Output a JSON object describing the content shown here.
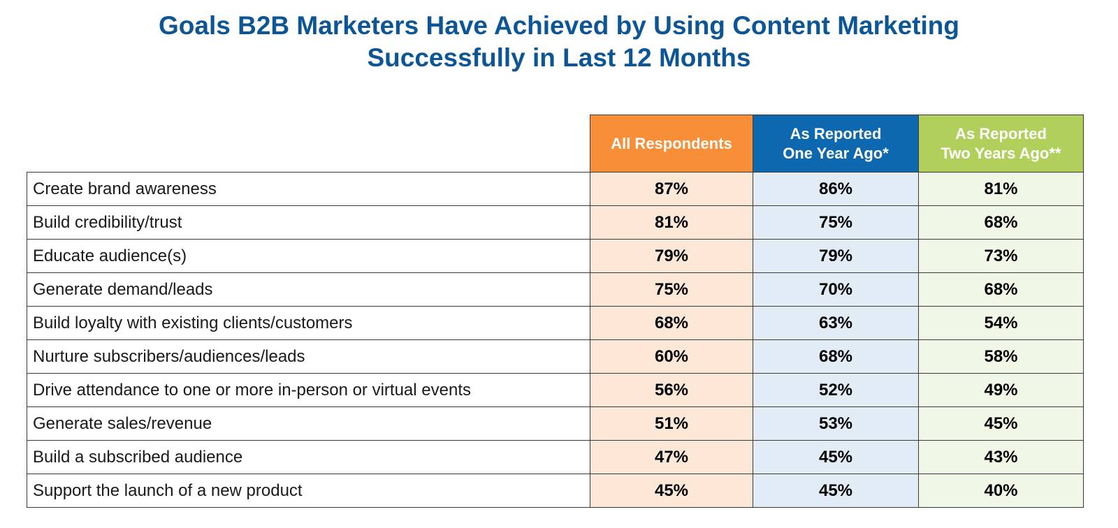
{
  "chart_data": {
    "type": "table",
    "title_lines": [
      "Goals B2B Marketers Have Achieved by Using Content Marketing",
      "Successfully in Last 12 Months"
    ],
    "columns": [
      {
        "label_lines": [
          "All Respondents"
        ],
        "color": "#f88f38",
        "cell_color": "#fde7d6"
      },
      {
        "label_lines": [
          "As Reported",
          "One Year Ago*"
        ],
        "color": "#0e68b0",
        "cell_color": "#e2ecf6"
      },
      {
        "label_lines": [
          "As Reported",
          "Two Years Ago**"
        ],
        "color": "#b1d05b",
        "cell_color": "#f1f7e6"
      }
    ],
    "rows": [
      {
        "label": "Create brand awareness",
        "values": [
          "87%",
          "86%",
          "81%"
        ]
      },
      {
        "label": "Build credibility/trust",
        "values": [
          "81%",
          "75%",
          "68%"
        ]
      },
      {
        "label": "Educate audience(s)",
        "values": [
          "79%",
          "79%",
          "73%"
        ]
      },
      {
        "label": "Generate demand/leads",
        "values": [
          "75%",
          "70%",
          "68%"
        ]
      },
      {
        "label": "Build loyalty with existing clients/customers",
        "values": [
          "68%",
          "63%",
          "54%"
        ]
      },
      {
        "label": "Nurture subscribers/audiences/leads",
        "values": [
          "60%",
          "68%",
          "58%"
        ]
      },
      {
        "label": "Drive attendance to one or more in-person or virtual events",
        "values": [
          "56%",
          "52%",
          "49%"
        ]
      },
      {
        "label": "Generate sales/revenue",
        "values": [
          "51%",
          "53%",
          "45%"
        ]
      },
      {
        "label": "Build a subscribed audience",
        "values": [
          "47%",
          "45%",
          "43%"
        ]
      },
      {
        "label": "Support the launch of a new product",
        "values": [
          "45%",
          "45%",
          "40%"
        ]
      }
    ]
  },
  "colors": {
    "title": "#0c5596",
    "border": "#3a3a3a"
  }
}
